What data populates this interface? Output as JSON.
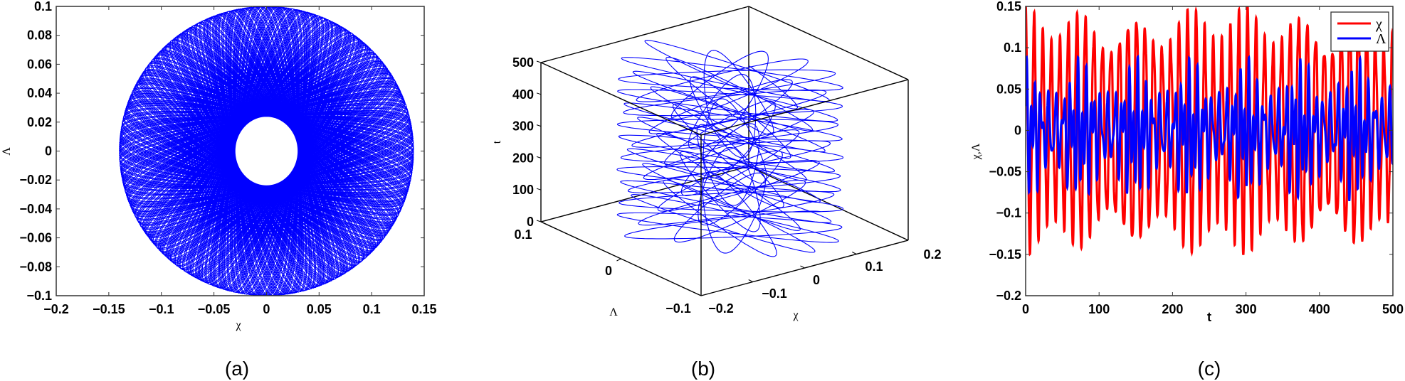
{
  "figure": {
    "panels": [
      {
        "id": "a",
        "label": "(a)"
      },
      {
        "id": "b",
        "label": "(b)"
      },
      {
        "id": "c",
        "label": "(c)"
      }
    ]
  },
  "colors": {
    "trajectory": "#0000ff",
    "chi": "#ff0000",
    "lambda": "#0000ff",
    "axis": "#000000"
  },
  "chart_data": [
    {
      "panel": "(a)",
      "type": "line",
      "title": "",
      "xlabel": "χ",
      "ylabel": "Λ",
      "xlim": [
        -0.2,
        0.15
      ],
      "ylim": [
        -0.1,
        0.1
      ],
      "xticks": [
        "-0.2",
        "-0.15",
        "-0.1",
        "-0.05",
        "0",
        "0.05",
        "0.1",
        "0.15"
      ],
      "yticks": [
        "0.1",
        "0.08",
        "0.06",
        "0.04",
        "0.02",
        "0",
        "-0.02",
        "-0.04",
        "-0.06",
        "-0.08",
        "-0.1"
      ],
      "grid": false,
      "description": "Phase portrait (χ vs Λ): quasi-periodic precessing rosette filling an ellipse χ∈[-0.14,0.14], Λ∈[-0.1,0.1], hollow region near the origin, small loops near χ≈±0.09",
      "series": [
        {
          "name": "trajectory",
          "color": "#0000ff",
          "x_range": [
            -0.14,
            0.14
          ],
          "y_range": [
            -0.1,
            0.1
          ]
        }
      ]
    },
    {
      "panel": "(b)",
      "type": "line",
      "title": "",
      "xlabel": "χ",
      "ylabel": "Λ",
      "zlabel": "t",
      "xlim": [
        -0.2,
        0.2
      ],
      "ylim": [
        -0.1,
        0.1
      ],
      "zlim": [
        0,
        500
      ],
      "xticks": [
        "-0.2",
        "-0.1",
        "0",
        "0.1",
        "0.2"
      ],
      "yticks": [
        "0.1",
        "0",
        "-0.1"
      ],
      "zticks": [
        "0",
        "100",
        "200",
        "300",
        "400",
        "500"
      ],
      "grid": false,
      "description": "3D trajectory (χ, Λ, t): stacked elliptical loops rising with t from 0 to 500"
    },
    {
      "panel": "(c)",
      "type": "line",
      "title": "",
      "xlabel": "t",
      "ylabel": "χ,Λ",
      "xlim": [
        0,
        500
      ],
      "ylim": [
        -0.2,
        0.15
      ],
      "xticks": [
        "0",
        "100",
        "200",
        "300",
        "400",
        "500"
      ],
      "yticks": [
        "0.15",
        "0.1",
        "0.05",
        "0",
        "-0.05",
        "-0.1",
        "-0.15",
        "-0.2"
      ],
      "grid": false,
      "legend": {
        "position": "upper right",
        "entries": [
          "χ",
          "Λ"
        ]
      },
      "series": [
        {
          "name": "χ",
          "color": "#ff0000",
          "amplitude_range": [
            0.1,
            0.14
          ],
          "approx_period": 11.6,
          "beat_period": 75
        },
        {
          "name": "Λ",
          "color": "#0000ff",
          "amplitude_range": [
            0.05,
            0.1
          ],
          "approx_period": 6,
          "beat_period": 75
        }
      ]
    }
  ],
  "panel_a": {
    "xlabel": "χ",
    "ylabel": "Λ",
    "xticks": [
      "−0.2",
      "−0.15",
      "−0.1",
      "−0.05",
      "0",
      "0.05",
      "0.1",
      "0.15"
    ],
    "yticks": [
      "0.1",
      "0.08",
      "0.06",
      "0.04",
      "0.02",
      "0",
      "−0.02",
      "−0.04",
      "−0.06",
      "−0.08",
      "−0.1"
    ],
    "label": "(a)"
  },
  "panel_b": {
    "xlabel": "χ",
    "ylabel": "Λ",
    "zlabel": "t",
    "xticks": [
      "−0.2",
      "−0.1",
      "0",
      "0.1",
      "0.2"
    ],
    "yticks": [
      "0.1",
      "0",
      "−0.1"
    ],
    "zticks": [
      "500",
      "400",
      "300",
      "200",
      "100",
      "0"
    ],
    "label": "(b)"
  },
  "panel_c": {
    "xlabel": "t",
    "ylabel": "χ,Λ",
    "xticks": [
      "0",
      "100",
      "200",
      "300",
      "400",
      "500"
    ],
    "yticks": [
      "0.15",
      "0.1",
      "0.05",
      "0",
      "−0.05",
      "−0.1",
      "−0.15",
      "−0.2"
    ],
    "legend": [
      "χ",
      "Λ"
    ],
    "label": "(c)"
  }
}
